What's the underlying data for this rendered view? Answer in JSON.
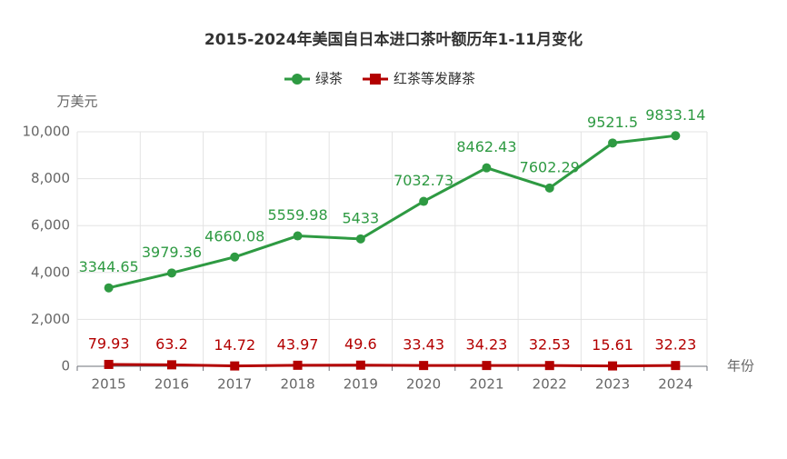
{
  "chart_data": {
    "type": "line",
    "title": "2015-2024年美国自日本进口茶叶额历年1-11月变化",
    "y_label": "万美元",
    "x_label": "年份",
    "legend": "top",
    "grid": true,
    "categories": [
      "2015",
      "2016",
      "2017",
      "2018",
      "2019",
      "2020",
      "2021",
      "2022",
      "2023",
      "2024"
    ],
    "series": [
      {
        "name": "绿茶",
        "color": "#2e9a42",
        "values": [
          3344.65,
          3979.36,
          4660.08,
          5559.98,
          5433,
          7032.73,
          8462.43,
          7602.29,
          9521.5,
          9833.14
        ]
      },
      {
        "name": "红茶等发酵茶",
        "color": "#b30000",
        "values": [
          79.93,
          63.2,
          14.72,
          43.97,
          49.6,
          33.43,
          34.23,
          32.53,
          15.61,
          32.23
        ]
      }
    ],
    "ylim": [
      0,
      10000
    ],
    "yticks": [
      0,
      {
        "value": 2000,
        "label": "2,000"
      },
      {
        "value": 4000,
        "label": "4,000"
      },
      {
        "value": 6000,
        "label": "6,000"
      },
      {
        "value": 8000,
        "label": "8,000"
      },
      {
        "value": 10000,
        "label": "10,000"
      }
    ]
  }
}
